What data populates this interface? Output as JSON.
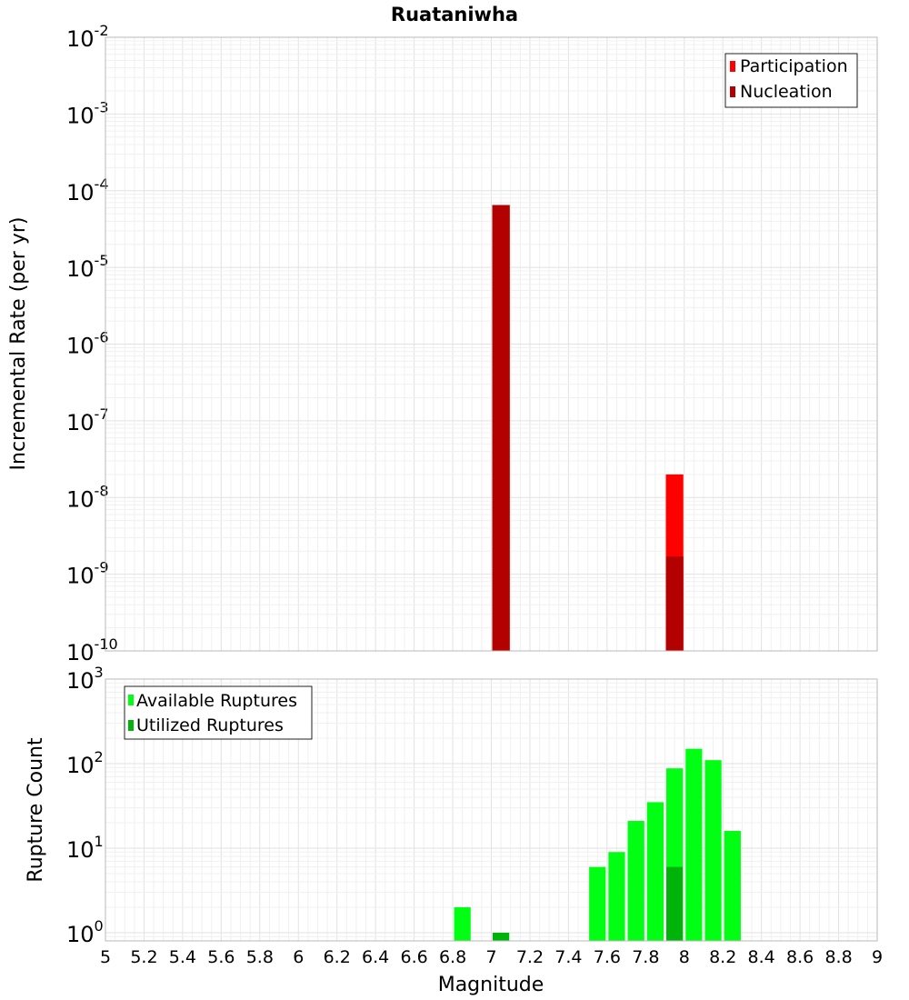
{
  "colors": {
    "participation": "#ff0000",
    "nucleation": "#b30000",
    "available": "#00ff12",
    "utilized": "#00b30b"
  },
  "chart_data": [
    {
      "type": "bar",
      "title": "Ruataniwha",
      "xlabel": "",
      "ylabel": "Incremental Rate (per yr)",
      "yscale": "log",
      "xlim": [
        5,
        9
      ],
      "ylim": [
        1e-10,
        0.01
      ],
      "bin_width": 0.1,
      "ytick_bases": [
        "10",
        "10",
        "10",
        "10",
        "10",
        "10",
        "10",
        "10",
        "10"
      ],
      "ytick_exponents": [
        "-10",
        "-9",
        "-8",
        "-7",
        "-6",
        "-5",
        "-4",
        "-3",
        "-2"
      ],
      "legend": {
        "position": "top-right",
        "entries": [
          "Participation",
          "Nucleation"
        ]
      },
      "series": [
        {
          "name": "Participation",
          "x": [
            7.05,
            7.95
          ],
          "values": [
            6.5e-05,
            2e-08
          ]
        },
        {
          "name": "Nucleation",
          "x": [
            7.05,
            7.95
          ],
          "values": [
            6.5e-05,
            1.7e-09
          ]
        }
      ]
    },
    {
      "type": "bar",
      "title": "",
      "xlabel": "Magnitude",
      "ylabel": "Rupture Count",
      "yscale": "log",
      "xlim": [
        5,
        9
      ],
      "ylim": [
        0.8,
        1000
      ],
      "bin_width": 0.1,
      "xticks": [
        "5",
        "5.2",
        "5.4",
        "5.6",
        "5.8",
        "6",
        "6.2",
        "6.4",
        "6.6",
        "6.8",
        "7",
        "7.2",
        "7.4",
        "7.6",
        "7.8",
        "8",
        "8.2",
        "8.4",
        "8.6",
        "8.8",
        "9"
      ],
      "ytick_bases": [
        "10",
        "10",
        "10",
        "10"
      ],
      "ytick_exponents": [
        "0",
        "1",
        "2",
        "3"
      ],
      "legend": {
        "position": "top-left",
        "entries": [
          "Available Ruptures",
          "Utilized Ruptures"
        ]
      },
      "series": [
        {
          "name": "Available Ruptures",
          "x": [
            6.85,
            7.55,
            7.65,
            7.75,
            7.85,
            7.95,
            8.05,
            8.15,
            8.25
          ],
          "values": [
            2,
            6,
            9,
            21,
            35,
            88,
            150,
            110,
            16
          ]
        },
        {
          "name": "Utilized Ruptures",
          "x": [
            7.05,
            7.95
          ],
          "values": [
            1,
            6
          ]
        }
      ]
    }
  ]
}
